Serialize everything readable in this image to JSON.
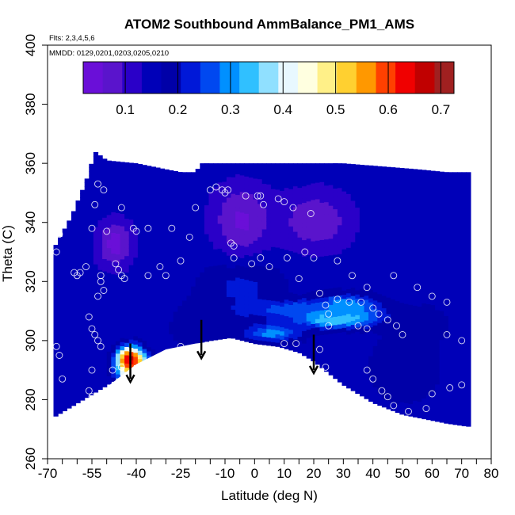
{
  "chart_data": {
    "type": "heatmap",
    "title": "ATOM2 Southbound AmmBalance_PM1_AMS",
    "subtitle_flights": "Flts: 2,3,4,5,6",
    "subtitle_dates": "MMDD: 0129,0201,0203,0205,0210",
    "xlabel": "Latitude (deg N)",
    "ylabel": "Theta (C)",
    "xlim": [
      -70,
      80
    ],
    "ylim": [
      260,
      400
    ],
    "x_tick_labels": [
      "-70",
      "-55",
      "-40",
      "-25",
      "-10",
      "0",
      "10",
      "20",
      "30",
      "40",
      "50",
      "60",
      "70",
      "80"
    ],
    "x_tick_values": [
      -70,
      -55,
      -40,
      -25,
      -10,
      0,
      10,
      20,
      30,
      40,
      50,
      60,
      70,
      80
    ],
    "x_minor_ticks": [
      -65,
      -60,
      -50,
      -45,
      -35,
      -30,
      -20,
      -15,
      -5,
      5,
      15,
      25,
      35,
      45,
      55,
      65,
      75
    ],
    "y_ticks": [
      260,
      280,
      300,
      320,
      340,
      360,
      380,
      400
    ],
    "colorbar": {
      "min": 0.02,
      "max": 0.725,
      "ticks": [
        0.1,
        0.2,
        0.3,
        0.4,
        0.5,
        0.6,
        0.7
      ],
      "tick_labels": [
        "0.1",
        "0.2",
        "0.3",
        "0.4",
        "0.5",
        "0.6",
        "0.7"
      ],
      "colors": [
        "#6a0fd8",
        "#5a14cc",
        "#2a00c8",
        "#0000b8",
        "#0000a8",
        "#0018d8",
        "#0048f0",
        "#0090ff",
        "#30c0ff",
        "#90e0ff",
        "#e8f8ff",
        "#ffffe0",
        "#fff088",
        "#ffd030",
        "#ff9800",
        "#ff4000",
        "#f00000",
        "#c00000",
        "#a02020"
      ]
    },
    "cross_section_value": 0.15,
    "field_hotspots": [
      {
        "lat": -43,
        "theta": 293,
        "value": 0.72,
        "r_lat": 4,
        "r_theta": 4
      },
      {
        "lat": -41,
        "theta": 289,
        "value": 0.6,
        "r_lat": 5,
        "r_theta": 5
      },
      {
        "lat": 27,
        "theta": 307,
        "value": 0.4,
        "r_lat": 14,
        "r_theta": 3
      },
      {
        "lat": 30,
        "theta": 311,
        "value": 0.32,
        "r_lat": 10,
        "r_theta": 4
      },
      {
        "lat": 14,
        "theta": 310,
        "value": 0.28,
        "r_lat": 22,
        "r_theta": 3
      },
      {
        "lat": 5,
        "theta": 302,
        "value": 0.3,
        "r_lat": 10,
        "r_theta": 3
      },
      {
        "lat": -5,
        "theta": 318,
        "value": 0.22,
        "r_lat": 14,
        "r_theta": 10
      },
      {
        "lat": -20,
        "theta": 305,
        "value": 0.2,
        "r_lat": 10,
        "r_theta": 8
      },
      {
        "lat": -35,
        "theta": 315,
        "value": 0.16,
        "r_lat": 10,
        "r_theta": 10
      },
      {
        "lat": 50,
        "theta": 290,
        "value": 0.2,
        "r_lat": 12,
        "r_theta": 12
      },
      {
        "lat": 55,
        "theta": 305,
        "value": 0.2,
        "r_lat": 10,
        "r_theta": 6
      },
      {
        "lat": -48,
        "theta": 332,
        "value": 0.04,
        "r_lat": 6,
        "r_theta": 8
      },
      {
        "lat": -5,
        "theta": 340,
        "value": 0.05,
        "r_lat": 10,
        "r_theta": 12
      },
      {
        "lat": 20,
        "theta": 340,
        "value": 0.06,
        "r_lat": 12,
        "r_theta": 10
      }
    ],
    "domain_top": [
      [
        -68,
        331
      ],
      [
        -62,
        342
      ],
      [
        -57,
        354
      ],
      [
        -54,
        364
      ],
      [
        -50,
        361
      ],
      [
        -40,
        360
      ],
      [
        -25,
        357
      ],
      [
        -20,
        357
      ],
      [
        -18,
        360
      ],
      [
        30,
        360
      ],
      [
        55,
        358
      ],
      [
        65,
        357
      ],
      [
        72,
        357
      ]
    ],
    "domain_bottom": [
      [
        -68,
        274
      ],
      [
        -58,
        280
      ],
      [
        -48,
        286
      ],
      [
        -40,
        292
      ],
      [
        -35,
        294
      ],
      [
        -25,
        298
      ],
      [
        -15,
        300
      ],
      [
        -8,
        301
      ],
      [
        0,
        299
      ],
      [
        8,
        298
      ],
      [
        15,
        296
      ],
      [
        20,
        293
      ],
      [
        25,
        289
      ],
      [
        30,
        285
      ],
      [
        35,
        282
      ],
      [
        40,
        279
      ],
      [
        45,
        277
      ],
      [
        50,
        275
      ],
      [
        55,
        274
      ],
      [
        60,
        273
      ],
      [
        65,
        272
      ],
      [
        72,
        271
      ]
    ],
    "observation_points": [
      [
        -67,
        330
      ],
      [
        -66,
        336
      ],
      [
        -67,
        337
      ],
      [
        -67,
        298
      ],
      [
        -66,
        295
      ],
      [
        -61,
        323
      ],
      [
        -60,
        322
      ],
      [
        -59,
        323
      ],
      [
        -57,
        325
      ],
      [
        -55,
        338
      ],
      [
        -54,
        346
      ],
      [
        -53,
        353
      ],
      [
        -51,
        351
      ],
      [
        -50,
        337
      ],
      [
        -52,
        320
      ],
      [
        -51,
        317
      ],
      [
        -53,
        315
      ],
      [
        -52,
        322
      ],
      [
        -47,
        326
      ],
      [
        -46,
        324
      ],
      [
        -45,
        322
      ],
      [
        -44,
        321
      ],
      [
        -45,
        345
      ],
      [
        -41,
        338
      ],
      [
        -40,
        337
      ],
      [
        -36,
        322
      ],
      [
        -36,
        338
      ],
      [
        -32,
        325
      ],
      [
        -30,
        322
      ],
      [
        -28,
        338
      ],
      [
        -25,
        327
      ],
      [
        -22,
        335
      ],
      [
        -20,
        345
      ],
      [
        -15,
        351
      ],
      [
        -13,
        352
      ],
      [
        -11,
        351
      ],
      [
        -10,
        350
      ],
      [
        -9,
        351
      ],
      [
        -8,
        333
      ],
      [
        -7,
        332
      ],
      [
        -7,
        328
      ],
      [
        -3,
        349
      ],
      [
        1,
        349
      ],
      [
        2,
        349
      ],
      [
        3,
        346
      ],
      [
        -1,
        326
      ],
      [
        2,
        328
      ],
      [
        5,
        325
      ],
      [
        8,
        348
      ],
      [
        10,
        347
      ],
      [
        11,
        328
      ],
      [
        13,
        345
      ],
      [
        17,
        330
      ],
      [
        19,
        343
      ],
      [
        15,
        321
      ],
      [
        20,
        328
      ],
      [
        28,
        327
      ],
      [
        33,
        322
      ],
      [
        38,
        318
      ],
      [
        47,
        322
      ],
      [
        55,
        318
      ],
      [
        60,
        315
      ],
      [
        65,
        313
      ],
      [
        -56,
        308
      ],
      [
        -55,
        304
      ],
      [
        -54,
        302
      ],
      [
        -53,
        300
      ],
      [
        -52,
        298
      ],
      [
        -45,
        291
      ],
      [
        -48,
        290
      ],
      [
        -55,
        290
      ],
      [
        -56,
        283
      ],
      [
        -55,
        281
      ],
      [
        -65,
        287
      ],
      [
        -25,
        298
      ],
      [
        10,
        299
      ],
      [
        14,
        299
      ],
      [
        22,
        297
      ],
      [
        24,
        291
      ],
      [
        38,
        290
      ],
      [
        40,
        287
      ],
      [
        43,
        283
      ],
      [
        45,
        281
      ],
      [
        47,
        278
      ],
      [
        52,
        276
      ],
      [
        58,
        277
      ],
      [
        60,
        282
      ],
      [
        66,
        284
      ],
      [
        70,
        285
      ],
      [
        70,
        300
      ],
      [
        65,
        302
      ],
      [
        50,
        302
      ],
      [
        48,
        305
      ],
      [
        45,
        307
      ],
      [
        42,
        309
      ],
      [
        40,
        311
      ],
      [
        36,
        313
      ],
      [
        32,
        313
      ],
      [
        28,
        314
      ],
      [
        25,
        309
      ],
      [
        24,
        312
      ],
      [
        22,
        316
      ],
      [
        25,
        305
      ],
      [
        35,
        305
      ],
      [
        38,
        304
      ]
    ],
    "arrows": [
      [
        -42,
        296
      ],
      [
        -18,
        304
      ],
      [
        20,
        299
      ]
    ],
    "terrain_outline": [
      [
        -49,
        285
      ],
      [
        -40,
        292
      ],
      [
        -30,
        297
      ],
      [
        -20,
        299
      ],
      [
        -12,
        300
      ],
      [
        -8,
        300.5
      ],
      [
        -3,
        299
      ],
      [
        5,
        296
      ],
      [
        12,
        294
      ],
      [
        18,
        292
      ],
      [
        24,
        288
      ],
      [
        28,
        284
      ],
      [
        34,
        279
      ],
      [
        40,
        276
      ],
      [
        46,
        273
      ],
      [
        52,
        271.5
      ],
      [
        58,
        270.2
      ],
      [
        60,
        270
      ],
      [
        -49,
        270
      ]
    ]
  }
}
